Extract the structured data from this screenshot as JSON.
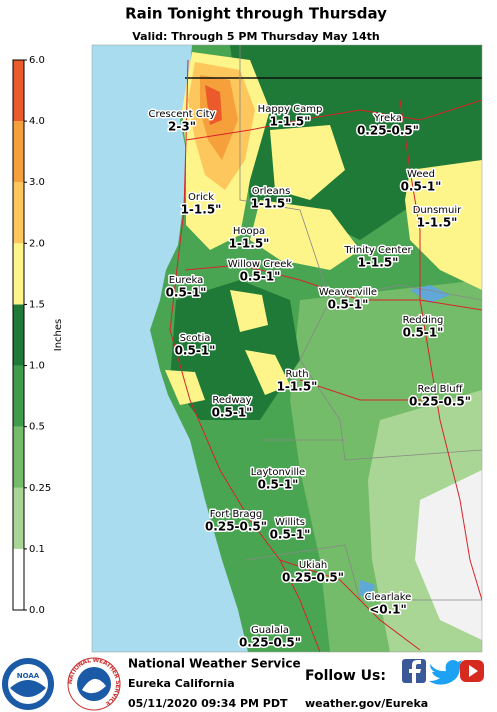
{
  "header": {
    "title": "Rain Tonight through Thursday",
    "subtitle": "Valid: Through 5 PM Thursday May 14th"
  },
  "legend": {
    "label": "Inches",
    "ticks": [
      "0.0",
      "0.1",
      "0.25",
      "0.5",
      "1.0",
      "1.5",
      "2.0",
      "3.0",
      "4.0",
      "6.0"
    ],
    "colors": [
      "#ffffff",
      "#a9d694",
      "#74bc69",
      "#3f9c4c",
      "#1e7a36",
      "#fdf48a",
      "#fdc75e",
      "#f5a03a",
      "#ea5a2a"
    ]
  },
  "places": [
    {
      "name": "Crescent City",
      "amount": "2-3\""
    },
    {
      "name": "Happy Camp",
      "amount": "1-1.5\""
    },
    {
      "name": "Yreka",
      "amount": "0.25-0.5\""
    },
    {
      "name": "Weed",
      "amount": "0.5-1\""
    },
    {
      "name": "Orick",
      "amount": "1-1.5\""
    },
    {
      "name": "Orleans",
      "amount": "1-1.5\""
    },
    {
      "name": "Dunsmuir",
      "amount": "1-1.5\""
    },
    {
      "name": "Hoopa",
      "amount": "1-1.5\""
    },
    {
      "name": "Trinity Center",
      "amount": "1-1.5\""
    },
    {
      "name": "Willow Creek",
      "amount": "0.5-1\""
    },
    {
      "name": "Eureka",
      "amount": "0.5-1\""
    },
    {
      "name": "Weaverville",
      "amount": "0.5-1\""
    },
    {
      "name": "Redding",
      "amount": "0.5-1\""
    },
    {
      "name": "Scotia",
      "amount": "0.5-1\""
    },
    {
      "name": "Ruth",
      "amount": "1-1.5\""
    },
    {
      "name": "Red Bluff",
      "amount": "0.25-0.5\""
    },
    {
      "name": "Redway",
      "amount": "0.5-1\""
    },
    {
      "name": "Laytonville",
      "amount": "0.5-1\""
    },
    {
      "name": "Fort Bragg",
      "amount": "0.25-0.5\""
    },
    {
      "name": "Willits",
      "amount": "0.5-1\""
    },
    {
      "name": "Ukiah",
      "amount": "0.25-0.5\""
    },
    {
      "name": "Clearlake",
      "amount": "<0.1\""
    },
    {
      "name": "Gualala",
      "amount": "0.25-0.5\""
    }
  ],
  "footer": {
    "agency": "National Weather Service",
    "office": "Eureka California",
    "timestamp": "05/11/2020 09:34 PM PDT",
    "follow": "Follow Us:",
    "website": "weather.gov/Eureka",
    "noaa": "NOAA",
    "nws": "NATIONAL WEATHER SERVICE"
  }
}
